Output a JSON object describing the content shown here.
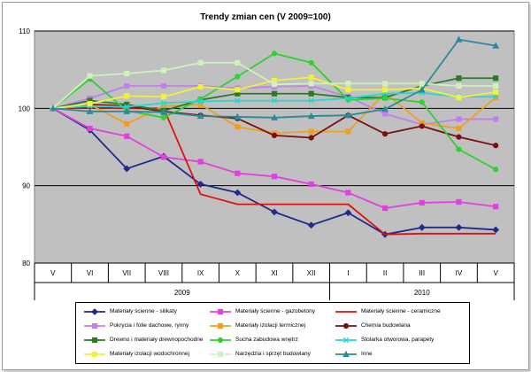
{
  "chart_data": {
    "type": "line",
    "title": "Trendy zmian cen (V 2009=100)",
    "categories": [
      "V",
      "VI",
      "VII",
      "VIII",
      "IX",
      "X",
      "XI",
      "XII",
      "I",
      "II",
      "III",
      "IV",
      "V"
    ],
    "year_groups": [
      {
        "label": "2009",
        "from": 0,
        "to": 7
      },
      {
        "label": "2010",
        "from": 8,
        "to": 12
      }
    ],
    "ylim": [
      80,
      110
    ],
    "yticks": [
      80,
      90,
      100,
      110
    ],
    "series": [
      {
        "name": "Materiały ścienne - silikaty",
        "color": "#1f2a8c",
        "marker": "diamond",
        "values": [
          100,
          97.2,
          92.2,
          93.8,
          90.2,
          89.1,
          86.6,
          84.9,
          86.5,
          83.7,
          84.6,
          84.6,
          84.3
        ]
      },
      {
        "name": "Materiały ścienne - gazobetony",
        "color": "#e040e0",
        "marker": "square",
        "values": [
          100,
          97.4,
          96.4,
          93.7,
          93.1,
          91.6,
          91.2,
          90.2,
          89.1,
          87.1,
          87.8,
          87.9,
          87.3
        ]
      },
      {
        "name": "Materiały ścienne - ceramiczne",
        "color": "#e01010",
        "marker": "none",
        "values": [
          100,
          100.1,
          100.0,
          100.0,
          88.9,
          87.6,
          87.6,
          87.6,
          87.6,
          83.7,
          83.8,
          83.8,
          83.8
        ]
      },
      {
        "name": "Pokrycia i folie dachowe, rynny",
        "color": "#c080f0",
        "marker": "square",
        "values": [
          100,
          101.3,
          102.9,
          102.9,
          102.9,
          102.6,
          102.8,
          102.9,
          101.5,
          99.3,
          97.9,
          98.6,
          98.6
        ]
      },
      {
        "name": "Materiały izolacji termicznej",
        "color": "#f0a020",
        "marker": "square",
        "values": [
          100,
          100.5,
          98.0,
          100.3,
          100.5,
          97.6,
          96.8,
          97.0,
          97.0,
          102.0,
          98.1,
          97.4,
          101.4
        ]
      },
      {
        "name": "Chemia budowlana",
        "color": "#7a1010",
        "marker": "circle",
        "values": [
          100,
          100.5,
          100.3,
          99.6,
          99.1,
          98.7,
          96.5,
          96.2,
          99.1,
          96.7,
          97.7,
          96.3,
          95.2
        ]
      },
      {
        "name": "Drewno i materiały drewnopochodne",
        "color": "#2a7a2a",
        "marker": "square",
        "values": [
          100,
          101.0,
          100.5,
          99.7,
          101.1,
          101.9,
          101.9,
          101.9,
          101.4,
          101.4,
          102.9,
          103.9,
          103.9
        ]
      },
      {
        "name": "Sucha zabudowa wnętrz",
        "color": "#30d030",
        "marker": "circle",
        "values": [
          100,
          103.8,
          99.7,
          98.8,
          101.2,
          104.1,
          107.1,
          105.9,
          101.1,
          101.3,
          100.8,
          94.7,
          92.1
        ]
      },
      {
        "name": "Stolarka otworowa, parapety",
        "color": "#20d8d8",
        "marker": "x",
        "values": [
          100,
          100.3,
          100.2,
          100.7,
          100.9,
          101.0,
          101.0,
          101.0,
          101.3,
          101.9,
          102.0,
          101.5,
          101.5
        ]
      },
      {
        "name": "Materiały izolacji wodochronnej",
        "color": "#f0f040",
        "marker": "square",
        "values": [
          100,
          100.6,
          101.6,
          101.5,
          102.8,
          102.4,
          103.6,
          104.0,
          102.4,
          102.4,
          102.6,
          101.4,
          102.1
        ]
      },
      {
        "name": "Narzędzia i sprzęt budowlany",
        "color": "#d0f0c0",
        "marker": "square",
        "values": [
          100,
          104.2,
          104.5,
          104.9,
          105.9,
          105.9,
          103.1,
          103.2,
          103.2,
          103.2,
          103.2,
          102.9,
          102.9
        ]
      },
      {
        "name": "Inne",
        "color": "#2a8a9a",
        "marker": "triangle",
        "values": [
          100,
          99.6,
          99.6,
          99.5,
          99.0,
          98.9,
          98.8,
          99.0,
          99.1,
          99.9,
          102.4,
          108.9,
          108.1
        ]
      }
    ]
  }
}
